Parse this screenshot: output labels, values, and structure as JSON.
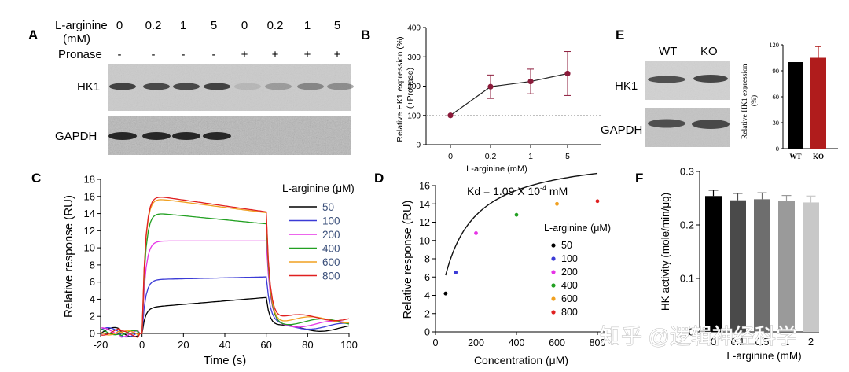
{
  "panels": {
    "A": {
      "letter": "A",
      "rows": [
        {
          "label": "L-arginine",
          "values": [
            "0",
            "0.2",
            "1",
            "5",
            "0",
            "0.2",
            "1",
            "5"
          ]
        },
        {
          "label": "(mM)"
        },
        {
          "label": "Pronase",
          "values": [
            "-",
            "-",
            "-",
            "-",
            "+",
            "+",
            "+",
            "+"
          ]
        }
      ],
      "blots": [
        "HK1",
        "GAPDH"
      ]
    },
    "B": {
      "letter": "B"
    },
    "C": {
      "letter": "C"
    },
    "D": {
      "letter": "D"
    },
    "E": {
      "letter": "E",
      "columns": [
        "WT",
        "KO"
      ],
      "blots": [
        "HK1",
        "GAPDH"
      ]
    },
    "F": {
      "letter": "F"
    }
  },
  "watermark": "知乎 @逻辑神经科学",
  "chart_data": [
    {
      "id": "B",
      "type": "line",
      "categories": [
        "0",
        "0.2",
        "1",
        "5"
      ],
      "series": [
        {
          "values": [
            100,
            198,
            216,
            243
          ],
          "errors": [
            0,
            40,
            42,
            75
          ]
        }
      ],
      "reference_line": 100,
      "xlabel": "L-arginine (mM)",
      "ylabel": "Relative HK1 expression (%) (+Pronase)",
      "ylim": [
        0,
        400
      ],
      "yticks": [
        "0",
        "100",
        "200",
        "300",
        "400"
      ],
      "color": "#8b1a3a"
    },
    {
      "id": "C",
      "type": "line",
      "xlabel": "Time (s)",
      "ylabel": "Relative response (RU)",
      "xlim": [
        -20,
        100
      ],
      "ylim": [
        0,
        18
      ],
      "xticks": [
        "-20",
        "0",
        "20",
        "40",
        "60",
        "80",
        "100"
      ],
      "yticks": [
        "0",
        "2",
        "4",
        "6",
        "8",
        "10",
        "12",
        "14",
        "16",
        "18"
      ],
      "legend_title": "L-arginine (μM)",
      "series": [
        {
          "name": "50",
          "color": "#000000",
          "plateau": [
            3.1,
            4.2
          ]
        },
        {
          "name": "100",
          "color": "#3b3bd6",
          "plateau": [
            6.3,
            6.6
          ]
        },
        {
          "name": "200",
          "color": "#e633e6",
          "plateau": [
            10.8,
            10.8
          ]
        },
        {
          "name": "400",
          "color": "#22a022",
          "plateau": [
            14.1,
            12.8
          ]
        },
        {
          "name": "600",
          "color": "#f0a020",
          "plateau": [
            15.8,
            14.1
          ]
        },
        {
          "name": "800",
          "color": "#e02020",
          "plateau": [
            16.1,
            14.2
          ]
        }
      ]
    },
    {
      "id": "D",
      "type": "scatter",
      "annotation": "Kd = 1.09 X 10",
      "annotation_exp": "-4",
      "annotation_unit": " mM",
      "xlabel": "Concentration (μM)",
      "ylabel": "Relative response (RU)",
      "xlim": [
        0,
        800
      ],
      "ylim": [
        0,
        16
      ],
      "xticks": [
        "0",
        "200",
        "400",
        "600",
        "800"
      ],
      "yticks": [
        "0",
        "2",
        "4",
        "6",
        "8",
        "10",
        "12",
        "14",
        "16"
      ],
      "legend_title": "L-arginine (μM)",
      "points": [
        {
          "name": "50",
          "x": 50,
          "y": 4.2,
          "color": "#000000"
        },
        {
          "name": "100",
          "x": 100,
          "y": 6.5,
          "color": "#3b3bd6"
        },
        {
          "name": "200",
          "x": 200,
          "y": 10.8,
          "color": "#e633e6"
        },
        {
          "name": "400",
          "x": 400,
          "y": 12.8,
          "color": "#22a022"
        },
        {
          "name": "600",
          "x": 600,
          "y": 14.0,
          "color": "#f0a020"
        },
        {
          "name": "800",
          "x": 800,
          "y": 14.3,
          "color": "#e02020"
        }
      ]
    },
    {
      "id": "E",
      "type": "bar",
      "categories": [
        "WT",
        "KO"
      ],
      "values": [
        100,
        105
      ],
      "errors": [
        0,
        13
      ],
      "colors": [
        "#000000",
        "#b01c1c"
      ],
      "ylabel": "Relative HK1 expression (%)",
      "ylim": [
        0,
        120
      ],
      "yticks": [
        "0",
        "30",
        "60",
        "90",
        "120"
      ]
    },
    {
      "id": "F",
      "type": "bar",
      "categories": [
        "0",
        "0.1",
        "0.5",
        "1",
        "2"
      ],
      "values": [
        0.254,
        0.246,
        0.248,
        0.245,
        0.242
      ],
      "errors": [
        0.011,
        0.013,
        0.012,
        0.01,
        0.012
      ],
      "colors": [
        "#000000",
        "#4a4a4a",
        "#6e6e6e",
        "#9a9a9a",
        "#c8c8c8"
      ],
      "xlabel": "L-arginine (mM)",
      "ylabel": "HK activity (mole/min/μg)",
      "ylim": [
        0,
        0.3
      ],
      "yticks": [
        "0",
        "0.1",
        "0.2",
        "0.3"
      ]
    }
  ]
}
